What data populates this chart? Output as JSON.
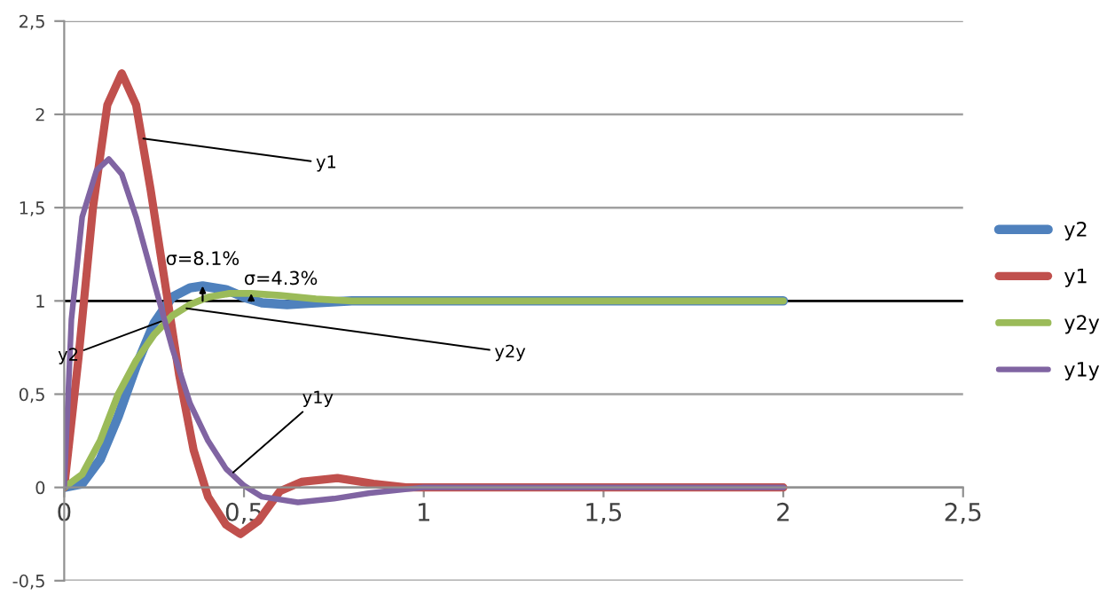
{
  "chart_data": {
    "type": "line",
    "xlim": [
      0,
      2.5
    ],
    "ylim": [
      -0.5,
      2.5
    ],
    "xticks": [
      0,
      {
        "value": 0.5,
        "label": "0,5"
      },
      1,
      {
        "value": 1.5,
        "label": "1,5"
      },
      2,
      {
        "value": 2.5,
        "label": "2,5"
      }
    ],
    "yticks": [
      {
        "value": -0.5,
        "label": "-0,5"
      },
      0,
      {
        "value": 0.5,
        "label": "0,5"
      },
      1,
      {
        "value": 1.5,
        "label": "1,5"
      },
      2,
      {
        "value": 2.5,
        "label": "2,5"
      }
    ],
    "grid": "y",
    "legend": "right",
    "marker": "none",
    "line_style": "solid",
    "ref_lines": [
      {
        "axis": "y",
        "value": 1,
        "label": null,
        "color": "#000000"
      }
    ],
    "series": [
      {
        "name": "y2",
        "color": "#4f81bd",
        "x": [
          0,
          0.05,
          0.1,
          0.15,
          0.2,
          0.25,
          0.3,
          0.35,
          0.385,
          0.45,
          0.5,
          0.55,
          0.62,
          0.7,
          0.8,
          2
        ],
        "values": [
          0,
          0.02,
          0.15,
          0.38,
          0.65,
          0.88,
          1.02,
          1.07,
          1.08,
          1.06,
          1.02,
          0.99,
          0.98,
          0.99,
          1.0,
          1.0
        ]
      },
      {
        "name": "y1",
        "color": "#c0504d",
        "x": [
          0,
          0.04,
          0.08,
          0.12,
          0.16,
          0.2,
          0.24,
          0.28,
          0.32,
          0.36,
          0.4,
          0.45,
          0.49,
          0.54,
          0.6,
          0.66,
          0.76,
          0.86,
          0.95,
          1.2,
          2
        ],
        "values": [
          0,
          0.7,
          1.5,
          2.05,
          2.22,
          2.05,
          1.6,
          1.1,
          0.6,
          0.2,
          -0.05,
          -0.2,
          -0.25,
          -0.18,
          -0.02,
          0.03,
          0.05,
          0.02,
          0,
          0,
          0
        ]
      },
      {
        "name": "y2y",
        "color": "#9bbb59",
        "x": [
          0,
          0.05,
          0.1,
          0.15,
          0.2,
          0.25,
          0.3,
          0.35,
          0.4,
          0.46,
          0.52,
          0.6,
          0.7,
          0.8,
          2
        ],
        "values": [
          0,
          0.07,
          0.25,
          0.5,
          0.68,
          0.82,
          0.92,
          0.98,
          1.02,
          1.04,
          1.04,
          1.03,
          1.01,
          1.0,
          1.0
        ]
      },
      {
        "name": "y1y",
        "color": "#8064a2",
        "x": [
          0,
          0.02,
          0.05,
          0.09,
          0.124,
          0.16,
          0.2,
          0.25,
          0.3,
          0.35,
          0.4,
          0.45,
          0.5,
          0.55,
          0.65,
          0.75,
          0.85,
          1.0,
          2
        ],
        "values": [
          0,
          0.9,
          1.45,
          1.7,
          1.76,
          1.68,
          1.45,
          1.1,
          0.75,
          0.45,
          0.25,
          0.1,
          0.01,
          -0.05,
          -0.08,
          -0.06,
          -0.03,
          0,
          0
        ]
      }
    ],
    "annotations": [
      {
        "text": "y1",
        "x": 0.22,
        "y": 1.87
      },
      {
        "text": "y2",
        "x": 0.27,
        "y": 0.89
      },
      {
        "text": "y2y",
        "x": 0.34,
        "y": 0.96
      },
      {
        "text": "y1y",
        "x": 0.47,
        "y": 0.08
      },
      {
        "text": "σ=8.1%",
        "x": 0.385,
        "y": 1.08
      },
      {
        "text": "σ=4.3%",
        "x": 0.52,
        "y": 1.04
      }
    ]
  }
}
